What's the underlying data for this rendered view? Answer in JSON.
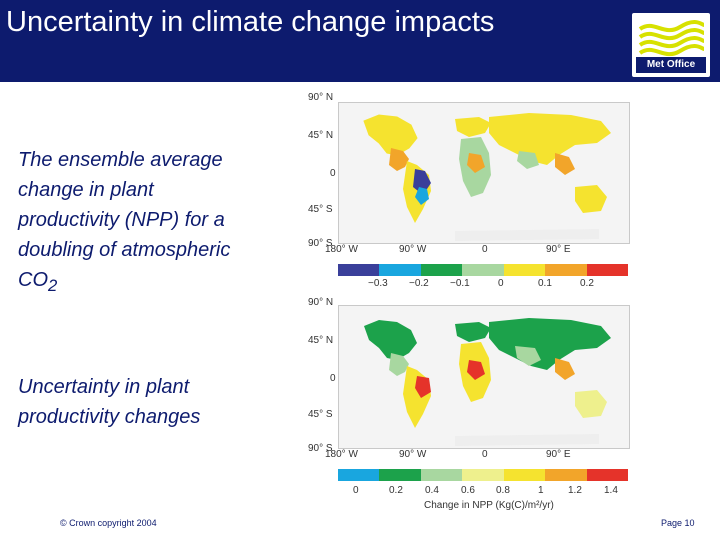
{
  "header": {
    "title": "Uncertainty in climate change impacts",
    "logo_text": "Met Office",
    "colors": {
      "background": "#0d1b6e",
      "text": "#ffffff",
      "logo_wave": "#d7e100"
    }
  },
  "panel1": {
    "description": [
      "The ensemble average",
      "change in plant",
      "productivity (NPP) for a",
      "doubling of atmospheric",
      "CO",
      "2"
    ],
    "lat_labels": [
      "90° N",
      "45° N",
      "0",
      "45° S",
      "90° S"
    ],
    "lon_labels": [
      "180° W",
      "90° W",
      "0",
      "90° E"
    ],
    "colorbar_ticks": [
      "−0.3",
      "−0.2",
      "−0.1",
      "0",
      "0.1",
      "0.2"
    ],
    "colorbar_colors": [
      "#3a3f9a",
      "#19a6df",
      "#1ca24b",
      "#a8d7a0",
      "#f5e32f",
      "#f2a52a",
      "#e5332a"
    ]
  },
  "panel2": {
    "description": [
      "Uncertainty in plant",
      "productivity changes"
    ],
    "lat_labels": [
      "90° N",
      "45° N",
      "0",
      "45° S",
      "90° S"
    ],
    "lon_labels": [
      "180° W",
      "90° W",
      "0",
      "90° E"
    ],
    "colorbar_ticks": [
      "0",
      "0.2",
      "0.4",
      "0.6",
      "0.8",
      "1",
      "1.2",
      "1.4"
    ],
    "colorbar_label": "Change in NPP (Kg(C)/m²/yr)",
    "colorbar_colors": [
      "#19a6df",
      "#1ca24b",
      "#a8d7a0",
      "#eef08d",
      "#f5e32f",
      "#f2a52a",
      "#e5332a"
    ]
  },
  "footer": {
    "copyright": "© Crown copyright 2004",
    "page": "Page 10"
  }
}
